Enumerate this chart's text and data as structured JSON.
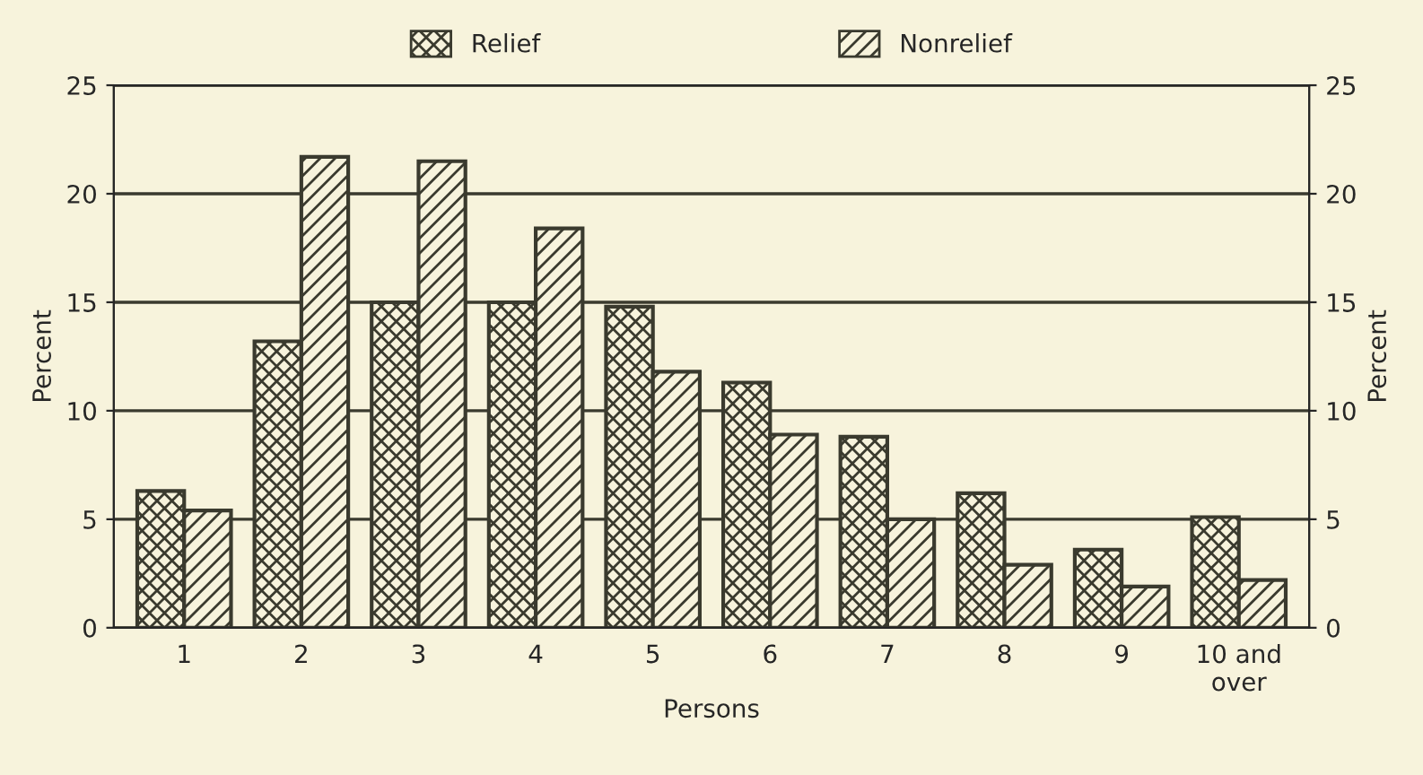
{
  "chart_data": {
    "type": "bar",
    "xlabel": "Persons",
    "ylabel": "Percent",
    "y2label": "Percent",
    "categories": [
      "1",
      "2",
      "3",
      "4",
      "5",
      "6",
      "7",
      "8",
      "9",
      "10 and\nover"
    ],
    "series": [
      {
        "name": "Relief",
        "color": "#3a3a2e",
        "values": [
          6.3,
          13.2,
          15.0,
          15.0,
          14.8,
          11.3,
          8.8,
          6.2,
          3.6,
          5.1
        ]
      },
      {
        "name": "Nonrelief",
        "color": "#3a3a2e",
        "values": [
          5.4,
          21.7,
          21.5,
          18.4,
          11.8,
          8.9,
          5.0,
          2.9,
          1.9,
          2.2
        ]
      }
    ],
    "ylim": [
      0,
      25
    ],
    "yticks": [
      0,
      5,
      10,
      15,
      20,
      25
    ],
    "y2lim": [
      0,
      25
    ],
    "y2ticks": [
      0,
      5,
      10,
      15,
      20,
      25
    ],
    "grid": "y",
    "legend": "top"
  }
}
